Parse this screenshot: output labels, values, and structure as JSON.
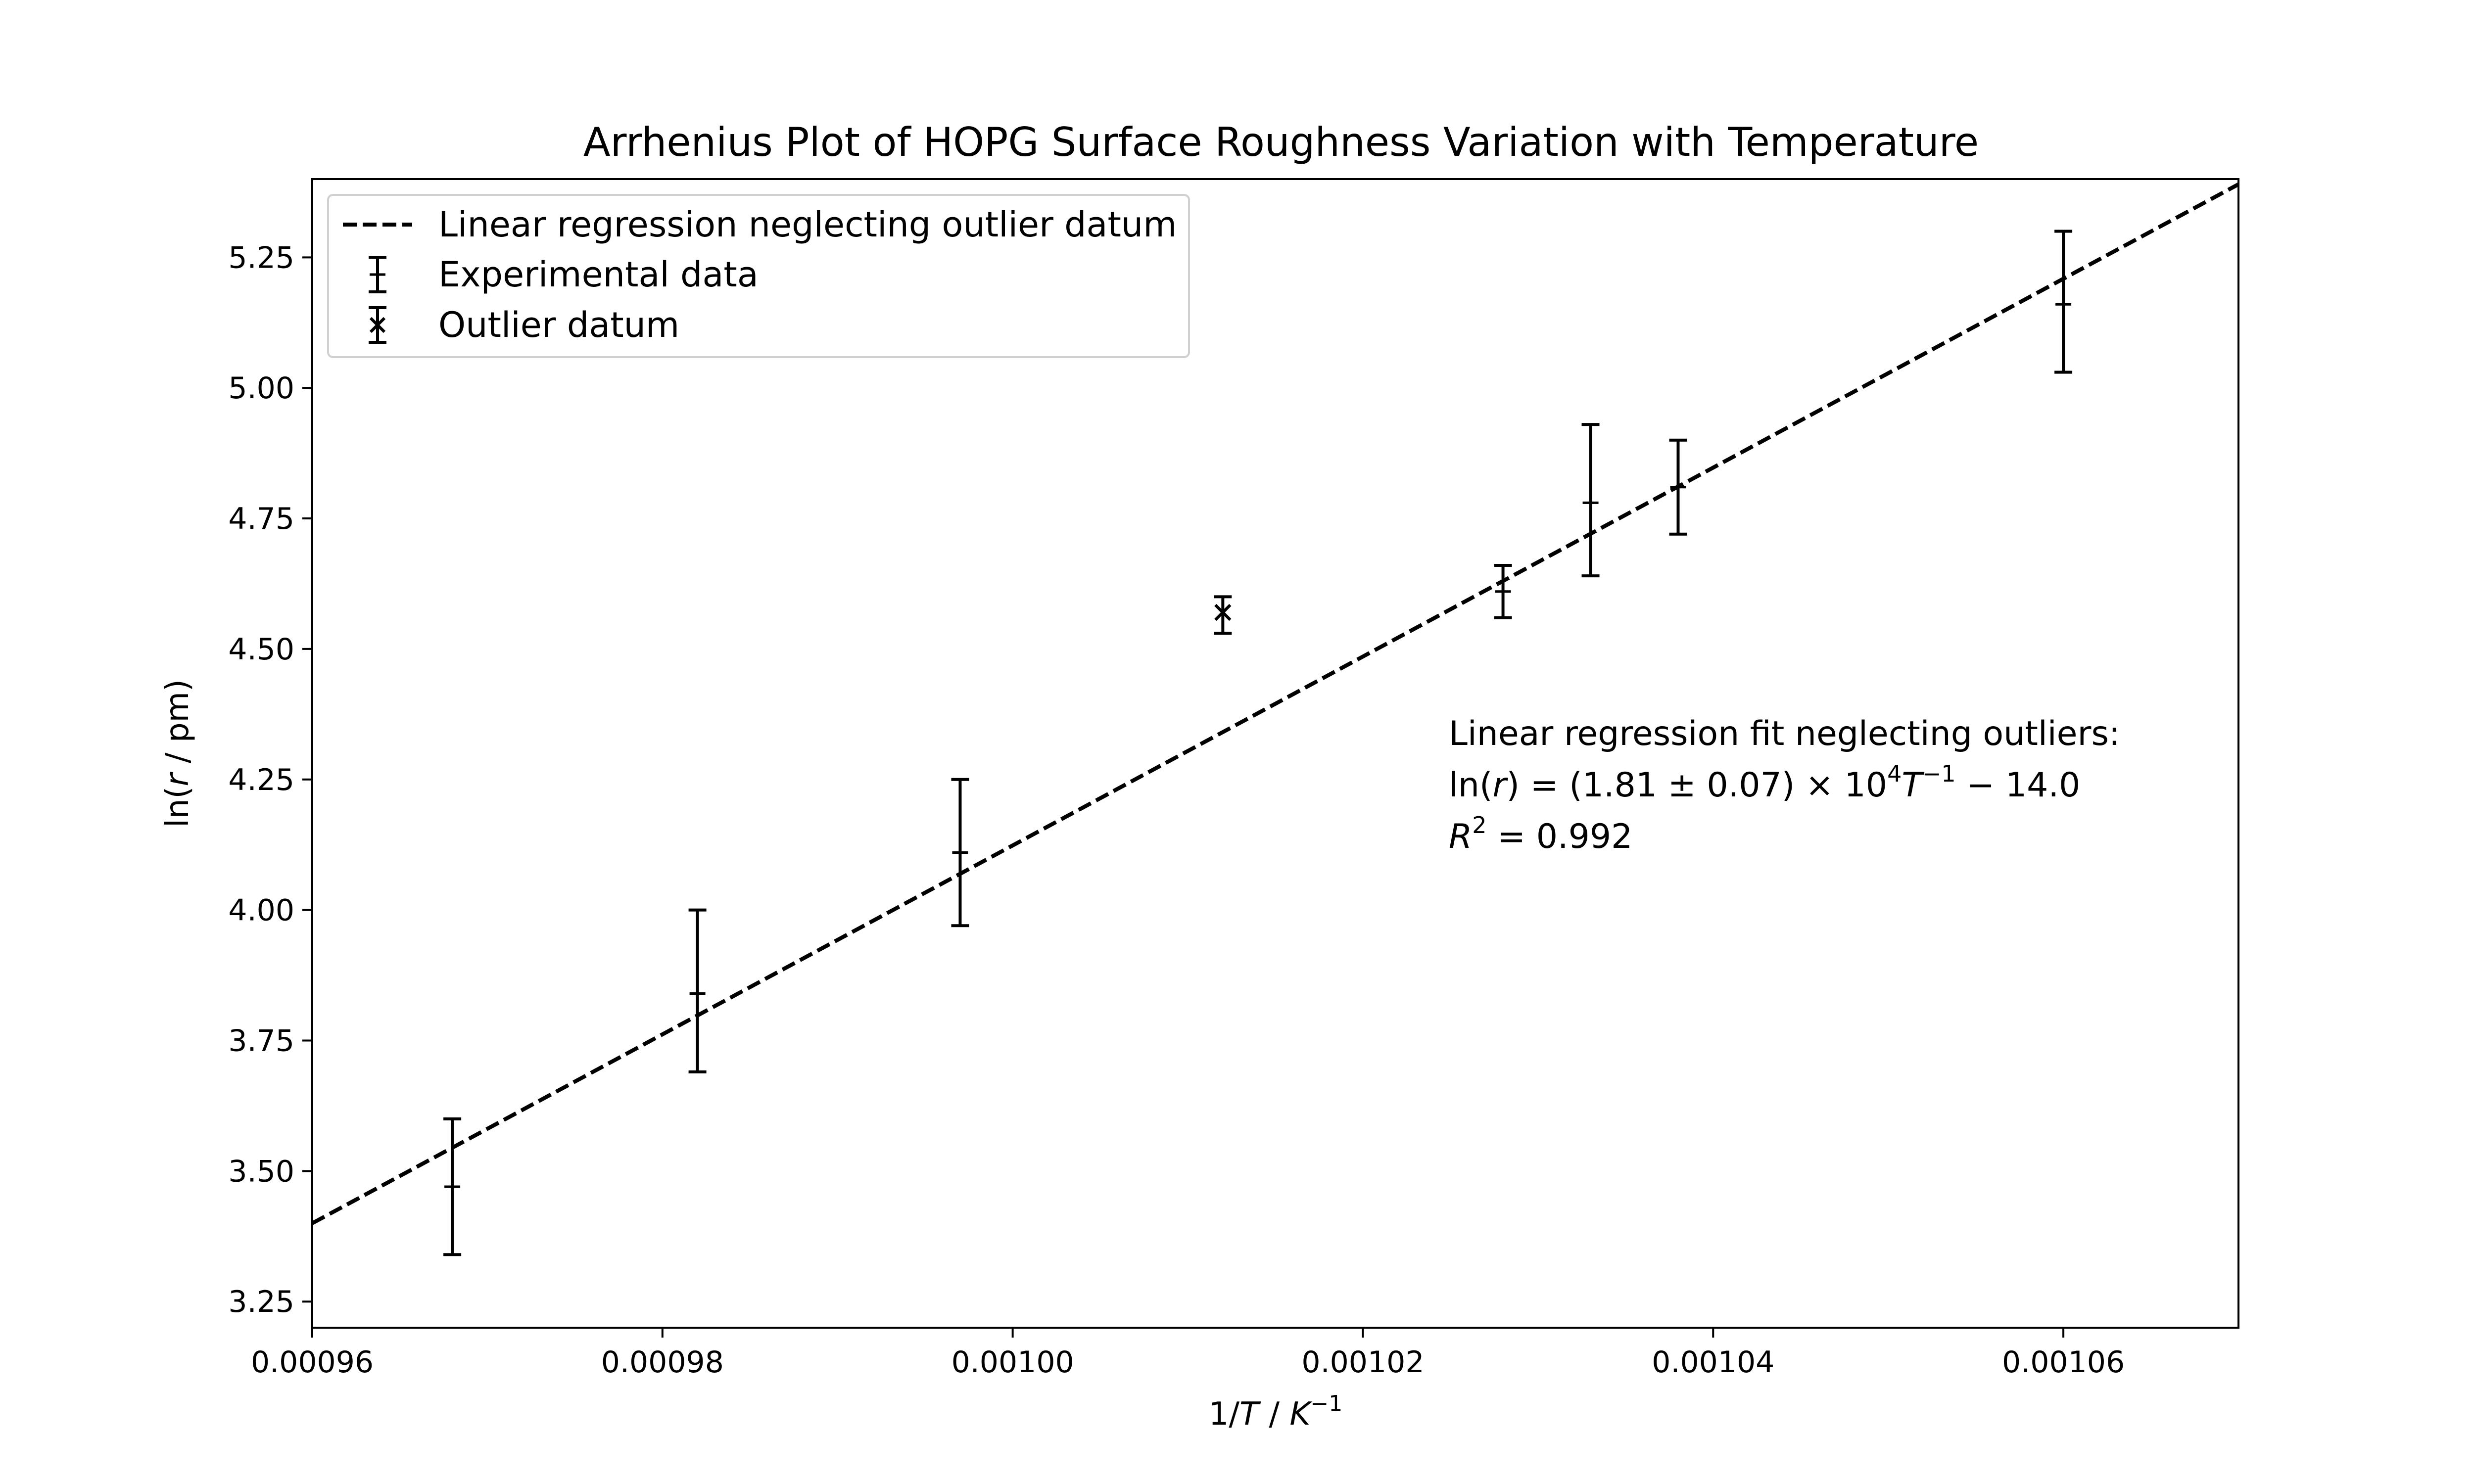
{
  "chart_data": {
    "type": "scatter",
    "title": "Arrhenius Plot of HOPG Surface Roughness Variation with Temperature",
    "xlabel": {
      "prefix": "1/",
      "var": "T",
      "mid": " / ",
      "unit": "K",
      "unit_sup": "−1"
    },
    "ylabel": {
      "prefix": "ln(",
      "var": "r",
      "suffix": " / pm)"
    },
    "xlim": [
      0.00096,
      0.00107
    ],
    "ylim": [
      3.2,
      5.4
    ],
    "x_ticks": [
      0.00096,
      0.00098,
      0.001,
      0.00102,
      0.00104,
      0.00106
    ],
    "x_tick_labels": [
      "0.00096",
      "0.00098",
      "0.00100",
      "0.00102",
      "0.00104",
      "0.00106"
    ],
    "y_ticks": [
      3.25,
      3.5,
      3.75,
      4.0,
      4.25,
      4.5,
      4.75,
      5.0,
      5.25
    ],
    "y_tick_labels": [
      "3.25",
      "3.50",
      "3.75",
      "4.00",
      "4.25",
      "4.50",
      "4.75",
      "5.00",
      "5.25"
    ],
    "grid": false,
    "legend_position": "top-left",
    "series": [
      {
        "name": "Linear regression neglecting outlier datum",
        "kind": "line",
        "style": "dashed",
        "x": [
          0.00096,
          0.00107
        ],
        "y": [
          3.4,
          5.39
        ]
      },
      {
        "name": "Experimental data",
        "kind": "errorbar",
        "marker": "+",
        "x": [
          0.000968,
          0.000982,
          0.000997,
          0.001028,
          0.001033,
          0.001038,
          0.00106
        ],
        "y": [
          3.47,
          3.84,
          4.11,
          4.61,
          4.78,
          4.81,
          5.16
        ],
        "yerr_low": [
          3.34,
          3.69,
          3.97,
          4.56,
          4.64,
          4.72,
          5.03
        ],
        "yerr_high": [
          3.6,
          4.0,
          4.25,
          4.66,
          4.93,
          4.9,
          5.3
        ]
      },
      {
        "name": "Outlier datum",
        "kind": "errorbar",
        "marker": "x",
        "x": [
          0.001012
        ],
        "y": [
          4.57
        ],
        "yerr_low": [
          4.53
        ],
        "yerr_high": [
          4.6
        ]
      }
    ],
    "annotation": {
      "line1": "Linear regression fit neglecting outliers:",
      "eq_lhs": "ln(",
      "eq_var": "r",
      "eq_mid": ") = (1.81 ± 0.07) × 10",
      "eq_exp1": "4",
      "eq_var2": "T",
      "eq_exp2": "−1",
      "eq_tail": " − 14.0",
      "r2_var": "R",
      "r2_exp": "2",
      "r2_tail": " = 0.992"
    },
    "colors": {
      "line": "#000000",
      "background": "#ffffff",
      "frame": "#000000"
    }
  }
}
